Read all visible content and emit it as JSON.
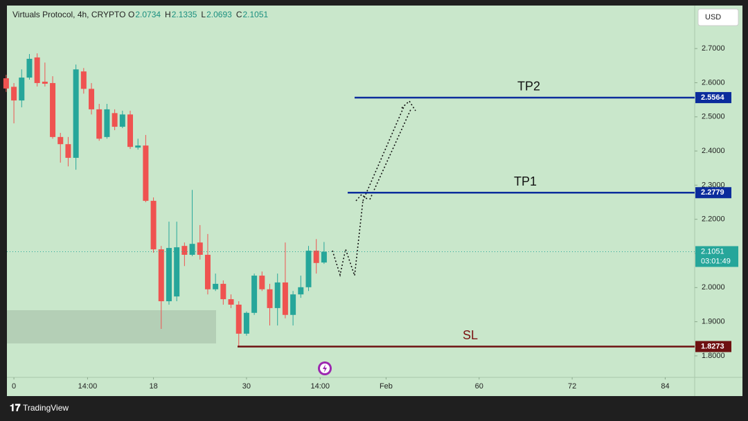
{
  "chart_data": {
    "type": "candlestick",
    "title": "Virtuals Protocol, 4h, CRYPTO",
    "ohlc_labels": [
      "O",
      "H",
      "L",
      "C"
    ],
    "x": [
      -1,
      0,
      1,
      2,
      3,
      4,
      5,
      6,
      7,
      8,
      9,
      10,
      11,
      12,
      13,
      14,
      15,
      16,
      17,
      18,
      19,
      20,
      21,
      22,
      23,
      24,
      25,
      26,
      27,
      28,
      29,
      30,
      31,
      32,
      33,
      34,
      35,
      36,
      37,
      38,
      39,
      40
    ],
    "open": [
      2.613,
      2.588,
      2.548,
      2.615,
      2.674,
      2.603,
      2.599,
      2.441,
      2.42,
      2.38,
      2.633,
      2.582,
      2.522,
      2.441,
      2.511,
      2.471,
      2.507,
      2.41,
      2.416,
      2.254,
      2.112,
      1.96,
      1.974,
      2.122,
      2.096,
      2.132,
      2.096,
      1.995,
      2.011,
      1.966,
      1.95,
      1.865,
      1.926,
      2.035,
      1.995,
      1.94,
      2.015,
      1.92,
      1.98,
      2.001,
      2.108,
      2.0734
    ],
    "high": [
      2.623,
      2.599,
      2.639,
      2.684,
      2.686,
      2.659,
      2.619,
      2.453,
      2.441,
      2.653,
      2.643,
      2.599,
      2.538,
      2.538,
      2.522,
      2.518,
      2.518,
      2.436,
      2.447,
      2.264,
      2.122,
      2.193,
      2.193,
      2.132,
      2.286,
      2.183,
      2.157,
      2.041,
      2.021,
      1.98,
      1.96,
      1.93,
      2.041,
      2.047,
      2.011,
      2.041,
      2.132,
      1.99,
      2.035,
      2.122,
      2.142,
      2.1335
    ],
    "low": [
      2.573,
      2.481,
      2.528,
      2.609,
      2.589,
      2.589,
      2.436,
      2.366,
      2.355,
      2.345,
      2.568,
      2.507,
      2.43,
      2.436,
      2.461,
      2.467,
      2.406,
      2.404,
      2.25,
      2.102,
      1.879,
      1.95,
      1.96,
      2.063,
      2.092,
      2.082,
      1.98,
      1.99,
      1.95,
      1.94,
      1.828,
      1.859,
      1.92,
      1.99,
      1.889,
      1.889,
      1.91,
      1.889,
      1.97,
      1.99,
      2.041,
      2.0693
    ],
    "close": [
      2.583,
      2.548,
      2.615,
      2.67,
      2.599,
      2.597,
      2.441,
      2.42,
      2.38,
      2.639,
      2.582,
      2.522,
      2.436,
      2.522,
      2.471,
      2.507,
      2.412,
      2.416,
      2.254,
      2.112,
      1.96,
      2.116,
      2.118,
      2.096,
      2.128,
      2.096,
      1.995,
      2.011,
      1.966,
      1.95,
      1.865,
      1.926,
      2.035,
      1.995,
      1.94,
      2.015,
      1.92,
      1.98,
      2.001,
      2.108,
      2.072,
      2.1051
    ],
    "up_color": "#26a69a",
    "down_color": "#ef5350",
    "xlim": [
      -0.9,
      87.8
    ],
    "xticks": [
      0,
      {
        "value": 9.5,
        "label": "14:00"
      },
      18,
      30,
      {
        "value": 39.5,
        "label": "14:00"
      },
      {
        "value": 48,
        "label": "Feb"
      },
      60,
      72,
      84
    ],
    "ylim": [
      1.737,
      2.826
    ],
    "yticks": [
      {
        "value": 1.8,
        "label": "1.8000"
      },
      {
        "value": 1.9,
        "label": "1.9000"
      },
      {
        "value": 2.0,
        "label": "2.0000"
      },
      {
        "value": 2.1,
        "label": "2.1000"
      },
      {
        "value": 2.2,
        "label": "2.2000"
      },
      {
        "value": 2.3,
        "label": "2.3000"
      },
      {
        "value": 2.4,
        "label": "2.4000"
      },
      {
        "value": 2.5,
        "label": "2.5000"
      },
      {
        "value": 2.6,
        "label": "2.6000"
      },
      {
        "value": 2.7,
        "label": "2.7000"
      }
    ],
    "levels": [
      {
        "name": "TP2",
        "value": 2.5564,
        "color": "#0b2c9c",
        "name_color": "#111111"
      },
      {
        "name": "TP1",
        "value": 2.2779,
        "color": "#0b2c9c",
        "name_color": "#111111"
      },
      {
        "name": "SL",
        "value": 1.8273,
        "color": "#6e1111",
        "name_color": "#7a1010"
      }
    ],
    "countdown": "03:01:49"
  },
  "ui": {
    "currency": "USD",
    "brand": "TradingView"
  }
}
